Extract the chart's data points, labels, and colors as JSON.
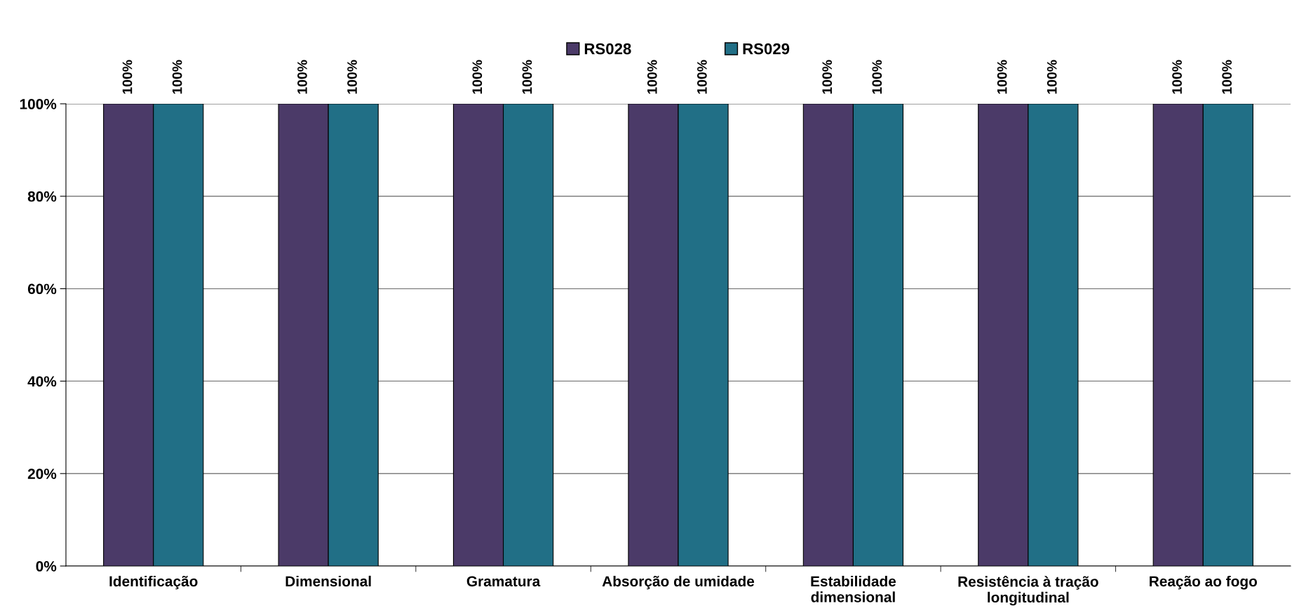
{
  "chart_data": {
    "type": "bar",
    "categories": [
      "Identificação",
      "Dimensional",
      "Gramatura",
      "Absorção de umidade",
      "Estabilidade\ndimensional",
      "Resistência à tração\nlongitudinal",
      "Reação ao fogo"
    ],
    "series": [
      {
        "name": "RS028",
        "color": "#4b3a68",
        "values": [
          100,
          100,
          100,
          100,
          100,
          100,
          100
        ],
        "value_labels": [
          "100%",
          "100%",
          "100%",
          "100%",
          "100%",
          "100%",
          "100%"
        ]
      },
      {
        "name": "RS029",
        "color": "#216f86",
        "values": [
          100,
          100,
          100,
          100,
          100,
          100,
          100
        ],
        "value_labels": [
          "100%",
          "100%",
          "100%",
          "100%",
          "100%",
          "100%",
          "100%"
        ]
      }
    ],
    "ylim": [
      0,
      100
    ],
    "yticks": [
      {
        "value": 0,
        "label": "0%"
      },
      {
        "value": 20,
        "label": "20%"
      },
      {
        "value": 40,
        "label": "40%"
      },
      {
        "value": 60,
        "label": "60%"
      },
      {
        "value": 80,
        "label": "80%"
      },
      {
        "value": 100,
        "label": "100%"
      }
    ],
    "grid": "y",
    "legend": "top"
  }
}
